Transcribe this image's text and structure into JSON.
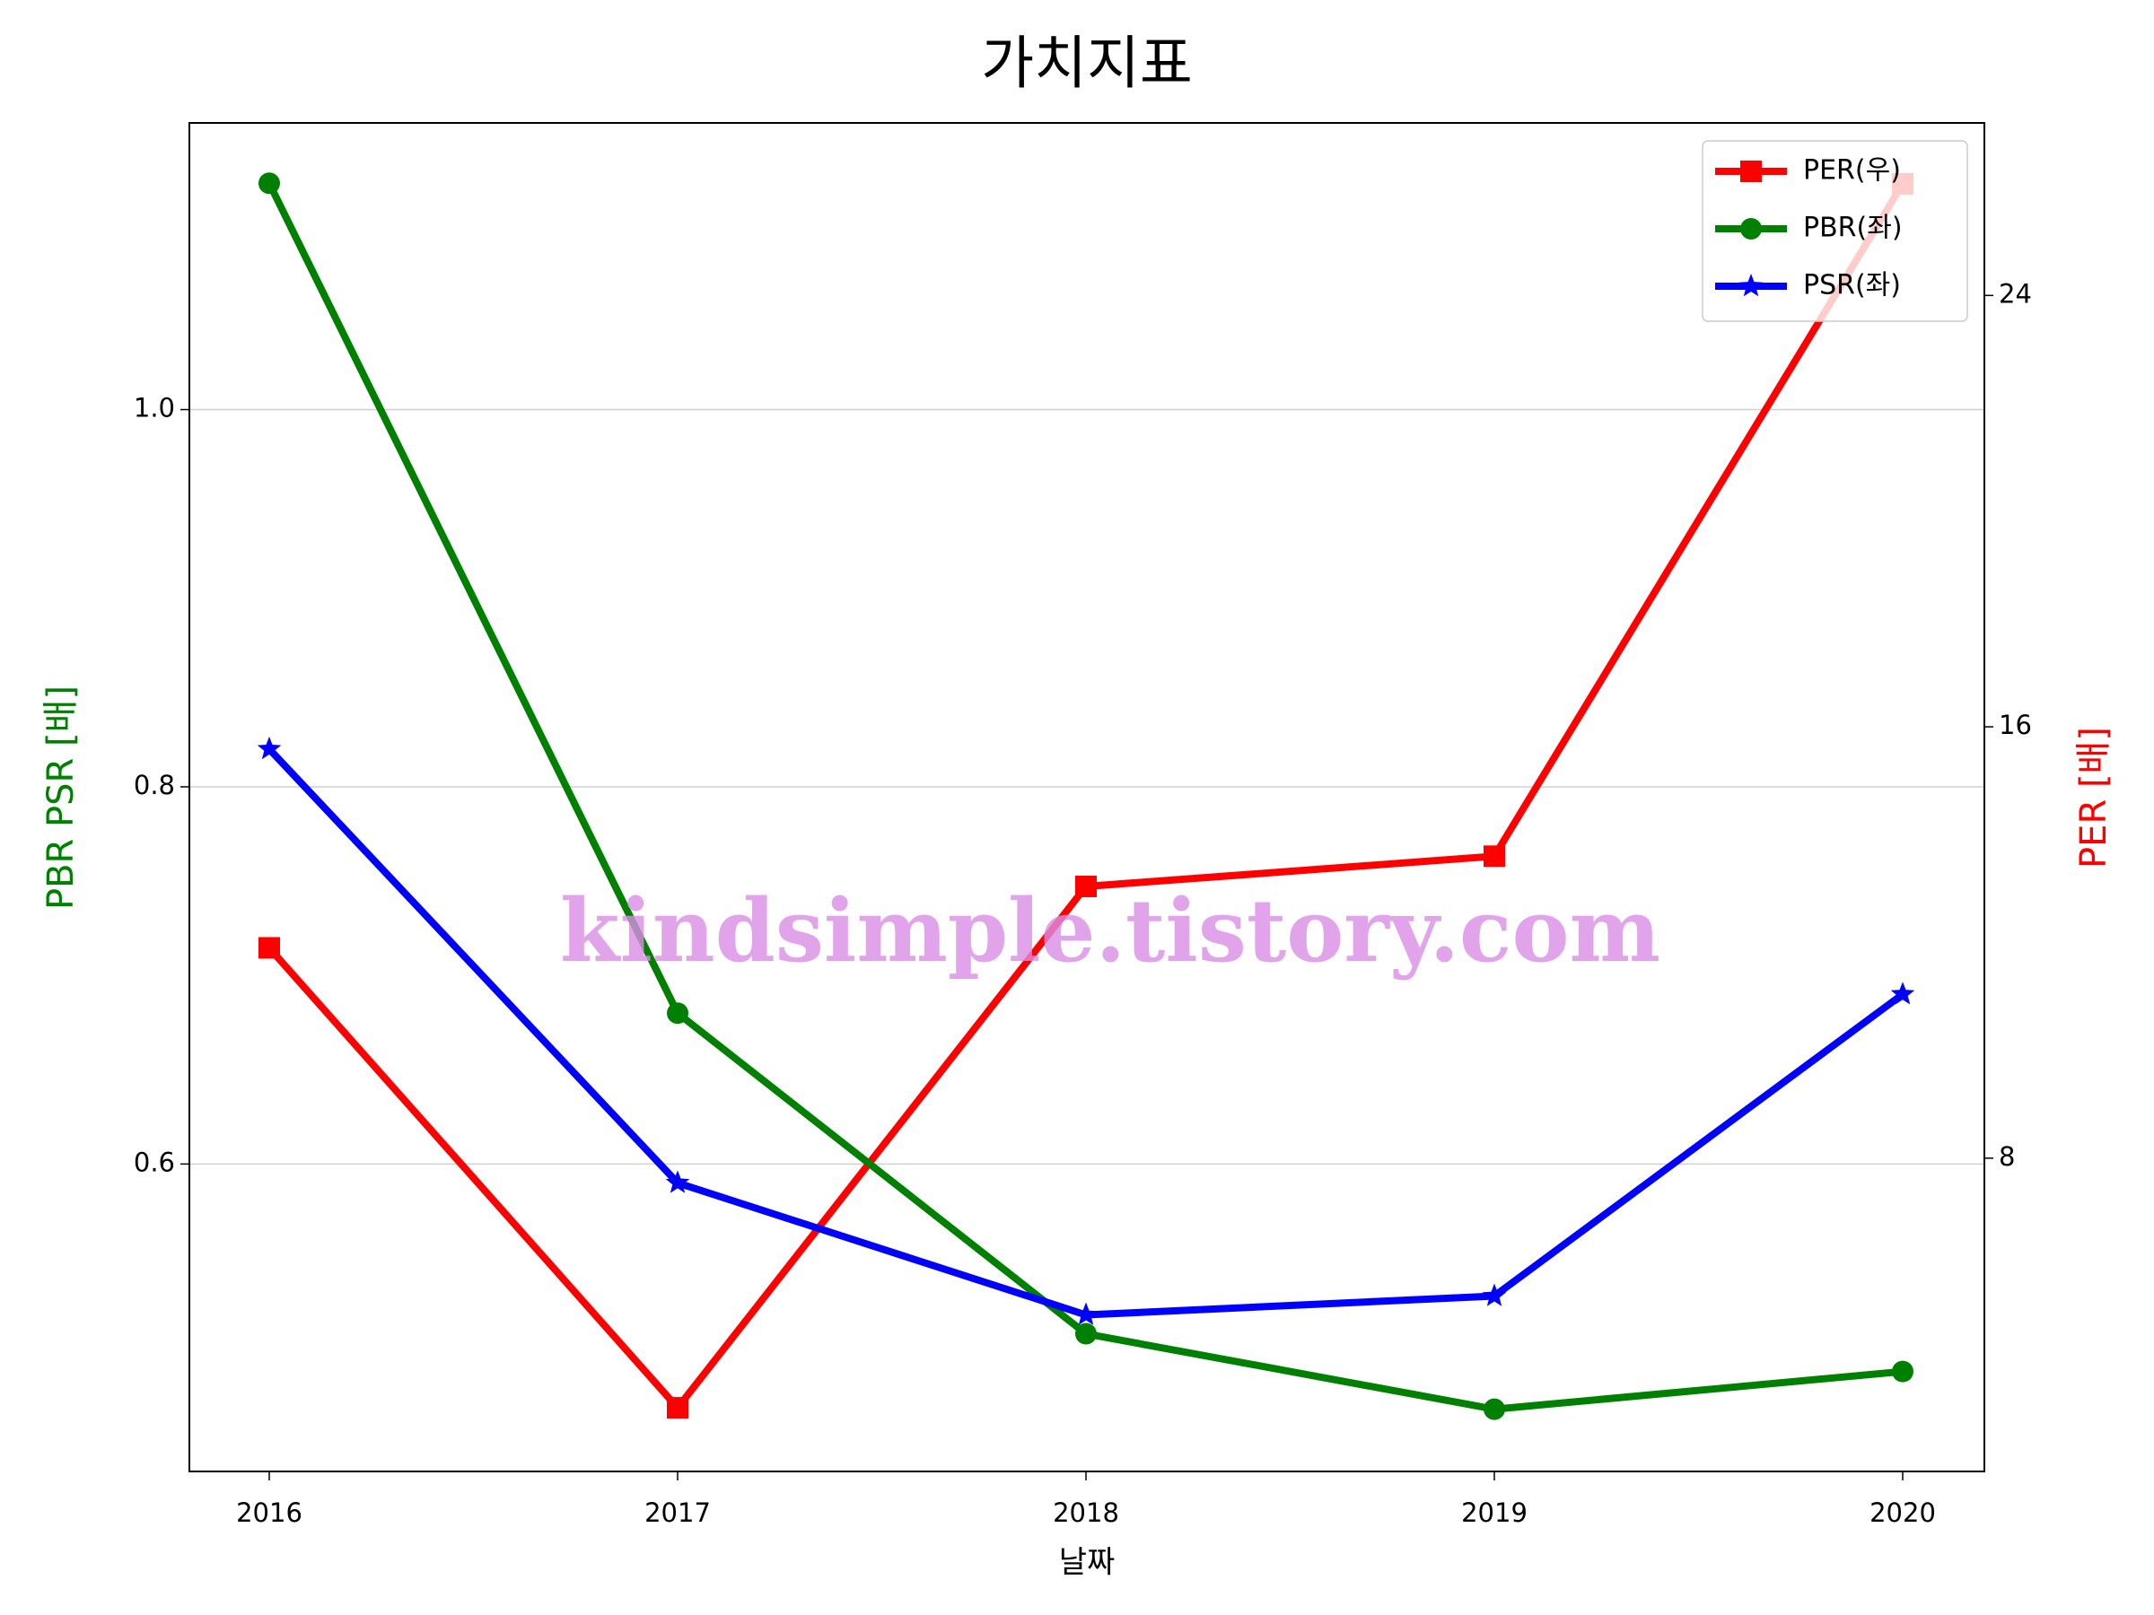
{
  "chart_data": {
    "type": "line",
    "title": "가치지표",
    "xlabel": "날짜",
    "ylabel": "PBR PSR [배]",
    "ylabel_color": "green",
    "y2label": "PER [배]",
    "y2label_color": "red",
    "categories": [
      "2016",
      "2017",
      "2018",
      "2019",
      "2020"
    ],
    "series": [
      {
        "name": "PER(우)",
        "color": "#ff0000",
        "marker": "square",
        "axis": "y2",
        "values": [
          11.9,
          3.37,
          13.04,
          13.6,
          26.07
        ]
      },
      {
        "name": "PBR(좌)",
        "color": "#008000",
        "marker": "circle",
        "values": [
          1.12,
          0.68,
          0.51,
          0.47,
          0.49
        ]
      },
      {
        "name": "PSR(좌)",
        "color": "#0000ff",
        "marker": "star",
        "values": [
          0.82,
          0.59,
          0.52,
          0.53,
          0.69
        ]
      }
    ],
    "ylim": [
      0.437,
      1.152
    ],
    "yticks": [
      {
        "value": 0.6,
        "label": "0.6"
      },
      {
        "value": 0.8,
        "label": "0.8"
      },
      {
        "value": 1.0,
        "label": "1.0"
      }
    ],
    "y2lim": [
      2.19,
      27.2
    ],
    "y2ticks": [
      8,
      16,
      24
    ],
    "grid": true,
    "legend": "upper right",
    "annotation": "kindsimple.tistory.com"
  }
}
